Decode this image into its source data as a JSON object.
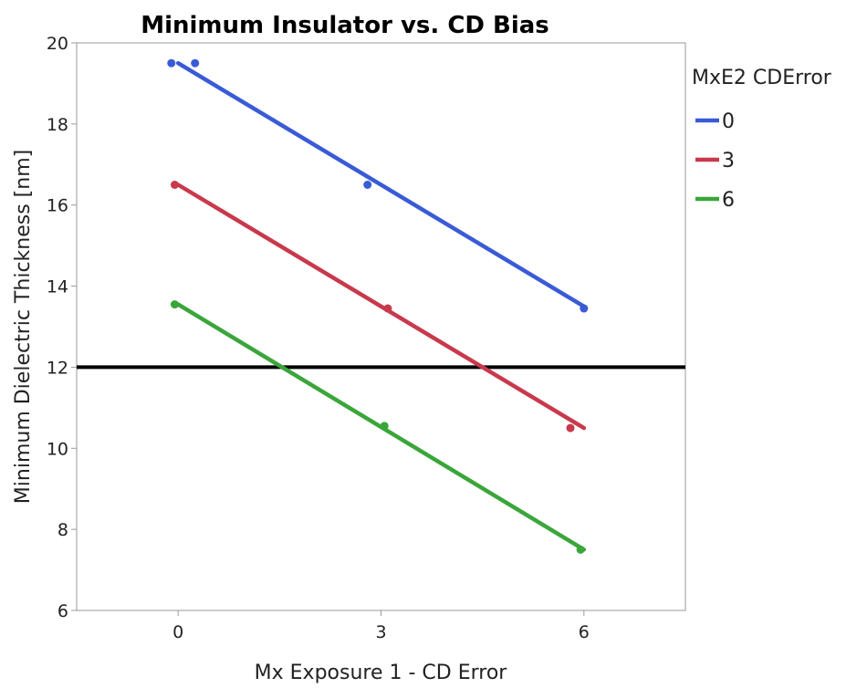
{
  "chart_data": {
    "type": "line",
    "title": "Minimum Insulator vs. CD Bias",
    "xlabel": "Mx Exposure 1 - CD Error",
    "ylabel": "Minimum Dielectric Thickness [nm]",
    "xlim": [
      -1.5,
      7.5
    ],
    "ylim": [
      6,
      20
    ],
    "xticks": [
      0,
      3,
      6
    ],
    "yticks": [
      6,
      8,
      10,
      12,
      14,
      16,
      18,
      20
    ],
    "legend_title": "MxE2 CDError",
    "legend_position": "right",
    "reference_line": {
      "y": 12,
      "color": "#000000"
    },
    "series": [
      {
        "name": "0",
        "color": "#3a5bd6",
        "points": [
          [
            -0.1,
            19.5
          ],
          [
            0.25,
            19.5
          ],
          [
            2.8,
            16.5
          ],
          [
            6.0,
            13.45
          ]
        ],
        "fit": [
          [
            0,
            19.5
          ],
          [
            6,
            13.5
          ]
        ]
      },
      {
        "name": "3",
        "color": "#c8394c",
        "points": [
          [
            -0.05,
            16.5
          ],
          [
            3.1,
            13.45
          ],
          [
            5.8,
            10.5
          ]
        ],
        "fit": [
          [
            0,
            16.5
          ],
          [
            6,
            10.5
          ]
        ]
      },
      {
        "name": "6",
        "color": "#3aa63a",
        "points": [
          [
            -0.05,
            13.55
          ],
          [
            3.05,
            10.55
          ],
          [
            5.95,
            7.5
          ]
        ],
        "fit": [
          [
            0,
            13.55
          ],
          [
            6,
            7.5
          ]
        ]
      }
    ]
  }
}
